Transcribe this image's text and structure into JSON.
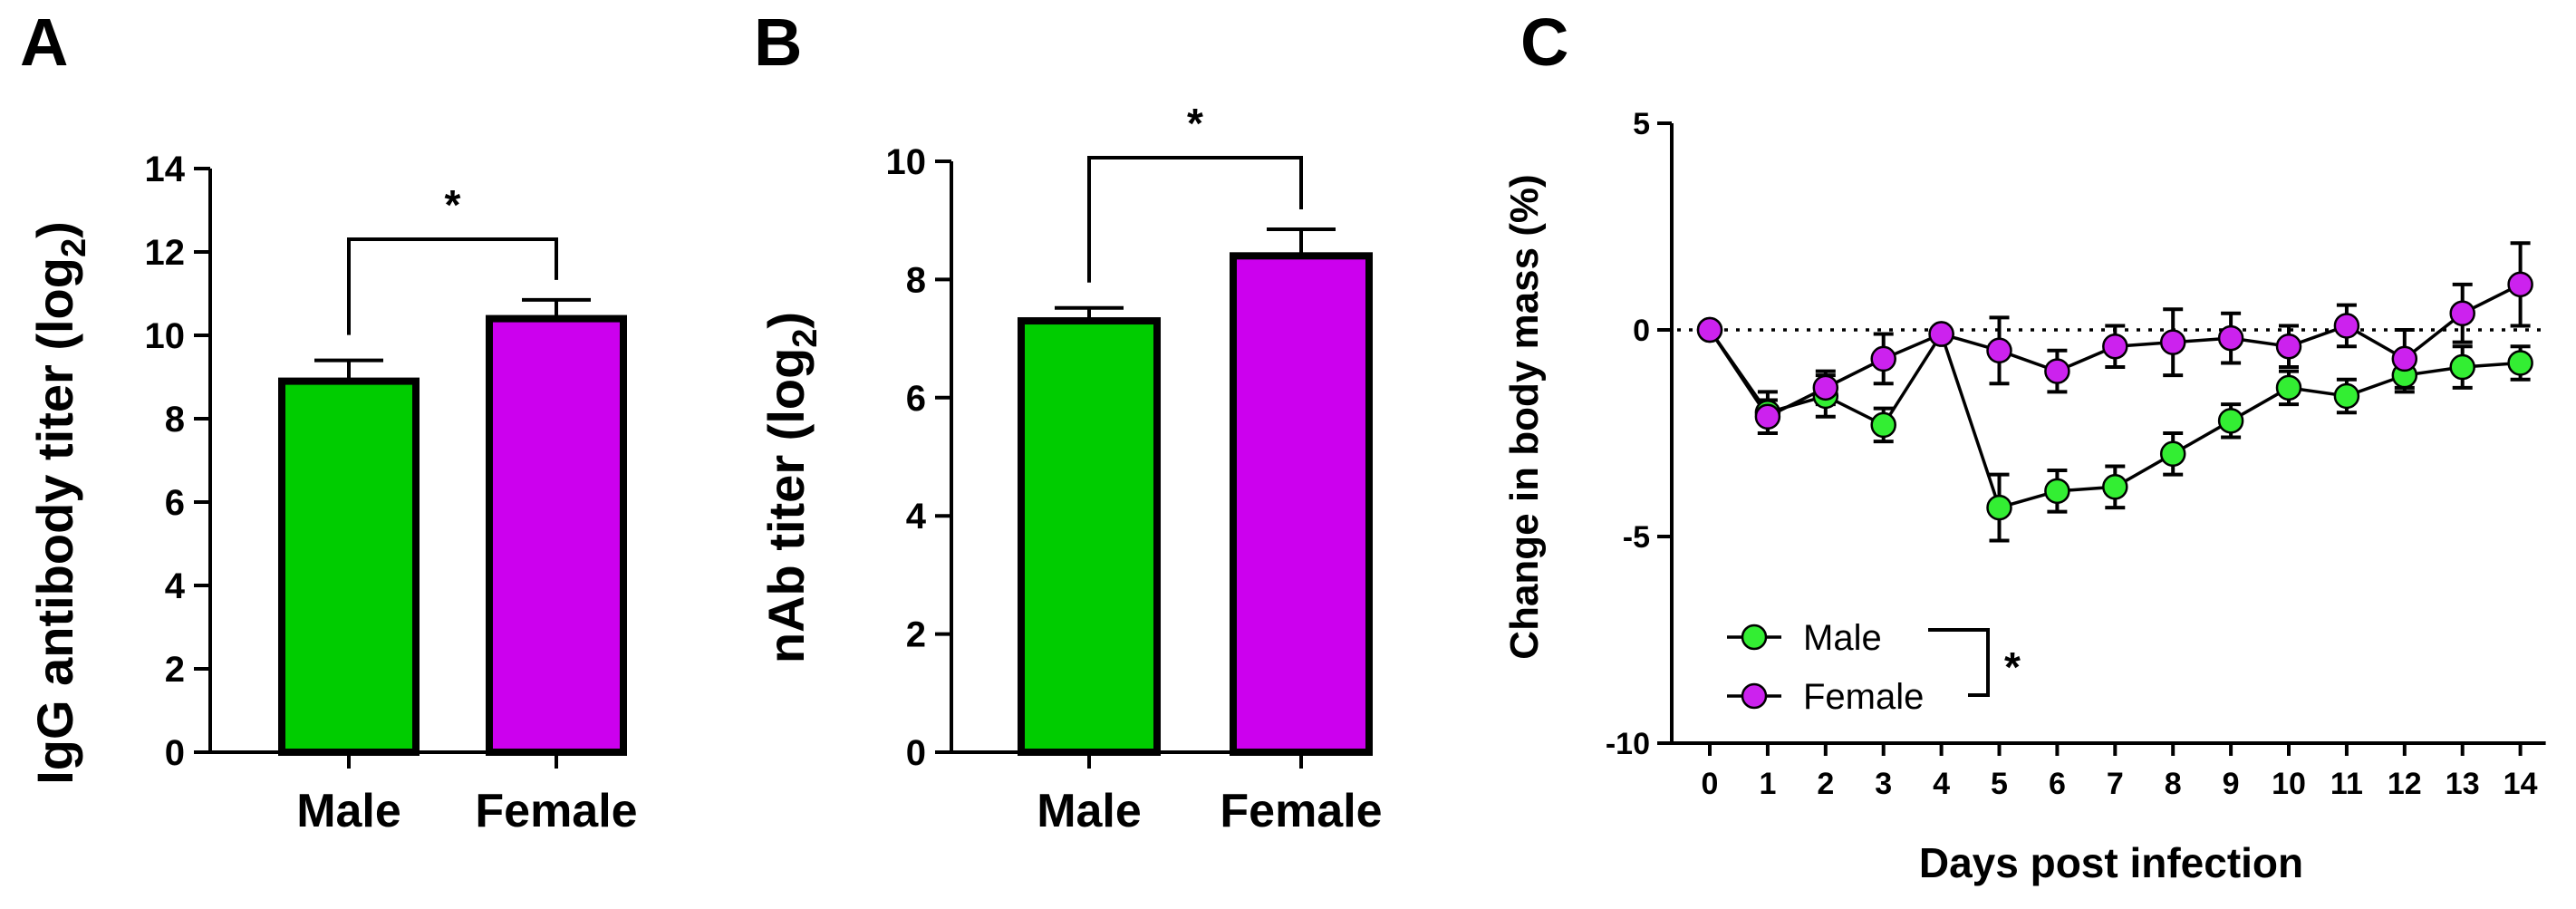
{
  "chart_data": [
    {
      "panel": "A",
      "type": "bar",
      "categories": [
        "Male",
        "Female"
      ],
      "values": [
        8.9,
        10.4
      ],
      "errors": [
        0.5,
        0.45
      ],
      "colors": [
        "#00cc00",
        "#cc00ee"
      ],
      "ylabel_main": "IgG antibody titer  (log",
      "ylabel_sub": "2",
      "ylabel_end": ")",
      "ylim": [
        0,
        14
      ],
      "yticks": [
        0,
        2,
        4,
        6,
        8,
        10,
        12,
        14
      ],
      "significance": "*"
    },
    {
      "panel": "B",
      "type": "bar",
      "categories": [
        "Male",
        "Female"
      ],
      "values": [
        7.3,
        8.4
      ],
      "errors": [
        0.22,
        0.45
      ],
      "colors": [
        "#00cc00",
        "#cc00ee"
      ],
      "ylabel_main": "nAb titer (log",
      "ylabel_sub": "2",
      "ylabel_end": ")",
      "ylim": [
        0,
        10
      ],
      "yticks": [
        0,
        2,
        4,
        6,
        8,
        10
      ],
      "significance": "*"
    },
    {
      "panel": "C",
      "type": "line",
      "x": [
        0,
        1,
        2,
        3,
        4,
        5,
        6,
        7,
        8,
        9,
        10,
        11,
        12,
        13,
        14
      ],
      "series": [
        {
          "name": "Male",
          "color": "#33ee33",
          "values": [
            0,
            -2.0,
            -1.6,
            -2.3,
            -0.1,
            -4.3,
            -3.9,
            -3.8,
            -3.0,
            -2.2,
            -1.4,
            -1.6,
            -1.1,
            -0.9,
            -0.8
          ],
          "errors": [
            0,
            0.5,
            0.5,
            0.4,
            0.1,
            0.8,
            0.5,
            0.5,
            0.5,
            0.4,
            0.4,
            0.4,
            0.4,
            0.5,
            0.4
          ]
        },
        {
          "name": "Female",
          "color": "#cc22ee",
          "values": [
            0,
            -2.1,
            -1.4,
            -0.7,
            -0.1,
            -0.5,
            -1.0,
            -0.4,
            -0.3,
            -0.2,
            -0.4,
            0.1,
            -0.7,
            0.4,
            1.1
          ],
          "errors": [
            0,
            0.4,
            0.4,
            0.6,
            0.1,
            0.8,
            0.5,
            0.5,
            0.8,
            0.6,
            0.5,
            0.5,
            0.7,
            0.7,
            1.0
          ]
        }
      ],
      "xlabel": "Days post infection",
      "ylabel": "Change in body mass (%)",
      "ylim": [
        -10,
        5
      ],
      "yticks": [
        -10,
        -5,
        0,
        5
      ],
      "significance": "*",
      "reference_line": 0
    }
  ]
}
